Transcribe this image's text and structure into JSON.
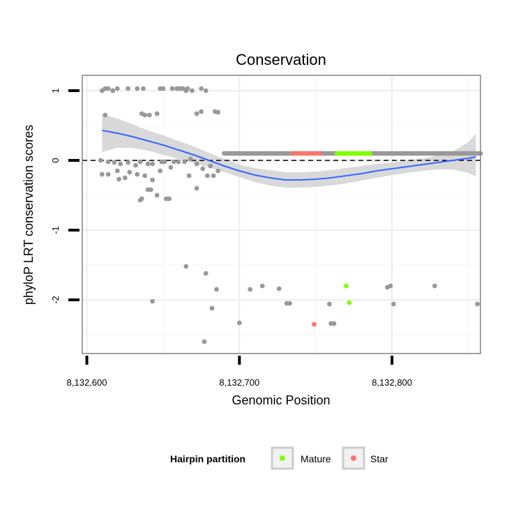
{
  "chart_data": {
    "type": "scatter",
    "title": "Conservation",
    "xlabel": "Genomic Position",
    "ylabel": "phyloP LRT conservation scores",
    "xlim": [
      8132597,
      8132858
    ],
    "ylim": [
      -2.77,
      1.22
    ],
    "x_ticks": [
      8132600,
      8132700,
      8132800
    ],
    "x_tick_labels": [
      "8,132,600",
      "8,132,700",
      "8,132,800"
    ],
    "y_ticks": [
      1,
      0,
      -1,
      -2
    ],
    "y_tick_labels": [
      "1",
      "0",
      "-1",
      "-2"
    ],
    "reference_line": {
      "y": 0,
      "style": "dashed"
    },
    "grid": true,
    "colors": {
      "other": "#999999",
      "Mature": "#7FFF00",
      "Star": "#F8766D",
      "smooth": "#3366FF",
      "ribbon": "#cccccc"
    },
    "legend": {
      "title": "Hairpin partition",
      "position": "bottom",
      "entries": [
        {
          "label": "Mature",
          "color": "#7FFF00"
        },
        {
          "label": "Star",
          "color": "#F8766D"
        }
      ]
    },
    "smooth_curve": {
      "x": [
        8132610,
        8132620,
        8132630,
        8132640,
        8132650,
        8132660,
        8132670,
        8132680,
        8132690,
        8132700,
        8132710,
        8132720,
        8132730,
        8132740,
        8132750,
        8132760,
        8132770,
        8132780,
        8132790,
        8132800,
        8132810,
        8132820,
        8132830,
        8132840,
        8132850,
        8132855
      ],
      "y": [
        0.43,
        0.39,
        0.34,
        0.28,
        0.22,
        0.15,
        0.08,
        0.0,
        -0.08,
        -0.15,
        -0.21,
        -0.25,
        -0.28,
        -0.28,
        -0.27,
        -0.25,
        -0.22,
        -0.19,
        -0.15,
        -0.12,
        -0.09,
        -0.06,
        -0.03,
        0.0,
        0.03,
        0.05
      ],
      "lower": [
        0.12,
        0.18,
        0.18,
        0.14,
        0.08,
        0.02,
        -0.04,
        -0.1,
        -0.17,
        -0.24,
        -0.31,
        -0.36,
        -0.39,
        -0.39,
        -0.38,
        -0.36,
        -0.33,
        -0.29,
        -0.25,
        -0.21,
        -0.18,
        -0.15,
        -0.13,
        -0.13,
        -0.18,
        -0.23
      ],
      "upper": [
        0.66,
        0.6,
        0.52,
        0.43,
        0.36,
        0.28,
        0.2,
        0.11,
        0.02,
        -0.06,
        -0.11,
        -0.14,
        -0.17,
        -0.17,
        -0.16,
        -0.14,
        -0.11,
        -0.08,
        -0.05,
        -0.03,
        0.0,
        0.03,
        0.07,
        0.13,
        0.26,
        0.38
      ]
    },
    "series": [
      {
        "name": "Other",
        "points": [
          [
            8132610,
            1.0
          ],
          [
            8132612,
            1.03
          ],
          [
            8132614,
            1.03
          ],
          [
            8132617,
            1.0
          ],
          [
            8132620,
            1.03
          ],
          [
            8132627,
            1.03
          ],
          [
            8132633,
            1.03
          ],
          [
            8132637,
            1.03
          ],
          [
            8132648,
            1.03
          ],
          [
            8132650,
            1.03
          ],
          [
            8132656,
            1.03
          ],
          [
            8132659,
            1.03
          ],
          [
            8132661,
            1.03
          ],
          [
            8132663,
            1.03
          ],
          [
            8132666,
            1.03
          ],
          [
            8132669,
            1.0
          ],
          [
            8132675,
            1.03
          ],
          [
            8132678,
            1.0
          ],
          [
            8132617,
            1.0
          ],
          [
            8132665,
            1.0
          ],
          [
            8132612,
            0.65
          ],
          [
            8132636,
            0.67
          ],
          [
            8132638,
            0.65
          ],
          [
            8132641,
            0.65
          ],
          [
            8132646,
            0.67
          ],
          [
            8132672,
            0.67
          ],
          [
            8132675,
            0.7
          ],
          [
            8132684,
            0.7
          ],
          [
            8132686,
            0.69
          ],
          [
            8132609,
            0.0
          ],
          [
            8132614,
            -0.02
          ],
          [
            8132618,
            -0.03
          ],
          [
            8132622,
            -0.05
          ],
          [
            8132627,
            -0.03
          ],
          [
            8132632,
            -0.07
          ],
          [
            8132635,
            -0.02
          ],
          [
            8132640,
            -0.05
          ],
          [
            8132643,
            -0.05
          ],
          [
            8132649,
            -0.02
          ],
          [
            8132651,
            -0.02
          ],
          [
            8132657,
            -0.02
          ],
          [
            8132660,
            -0.02
          ],
          [
            8132664,
            -0.02
          ],
          [
            8132668,
            0.02
          ],
          [
            8132672,
            -0.05
          ],
          [
            8132676,
            -0.12
          ],
          [
            8132681,
            -0.08
          ],
          [
            8132610,
            -0.2
          ],
          [
            8132614,
            -0.2
          ],
          [
            8132620,
            -0.15
          ],
          [
            8132625,
            -0.25
          ],
          [
            8132628,
            -0.17
          ],
          [
            8132633,
            -0.2
          ],
          [
            8132638,
            -0.22
          ],
          [
            8132648,
            -0.15
          ],
          [
            8132655,
            -0.1
          ],
          [
            8132667,
            -0.22
          ],
          [
            8132679,
            -0.22
          ],
          [
            8132683,
            -0.22
          ],
          [
            8132686,
            -0.15
          ],
          [
            8132621,
            -0.27
          ],
          [
            8132643,
            -0.28
          ],
          [
            8132640,
            -0.42
          ],
          [
            8132642,
            -0.42
          ],
          [
            8132646,
            -0.5
          ],
          [
            8132672,
            -0.4
          ],
          [
            8132652,
            -0.55
          ],
          [
            8132654,
            -0.55
          ],
          [
            8132635,
            -0.57
          ],
          [
            8132636,
            -0.55
          ],
          [
            8132643,
            -2.02
          ],
          [
            8132665,
            -1.52
          ],
          [
            8132678,
            -1.62
          ],
          [
            8132685,
            -1.85
          ],
          [
            8132682,
            -2.12
          ],
          [
            8132677,
            -2.6
          ],
          [
            8132700,
            -2.33
          ],
          [
            8132707,
            -1.85
          ],
          [
            8132715,
            -1.8
          ],
          [
            8132726,
            -1.84
          ],
          [
            8132731,
            -2.05
          ],
          [
            8132733,
            -2.05
          ],
          [
            8132759,
            -2.06
          ],
          [
            8132760,
            -2.34
          ],
          [
            8132762,
            -2.34
          ],
          [
            8132797,
            -1.82
          ],
          [
            8132799,
            -1.8
          ],
          [
            8132801,
            -2.06
          ],
          [
            8132828,
            -1.8
          ],
          [
            8132856,
            -2.06
          ]
        ]
      },
      {
        "name": "Mature",
        "points": [
          [
            8132770,
            -1.8
          ],
          [
            8132772,
            -2.04
          ]
        ]
      },
      {
        "name": "Star",
        "points": [
          [
            8132749,
            -2.35
          ]
        ]
      }
    ],
    "band_points": {
      "y": 0.1,
      "other_ranges": [
        [
          8132690,
          8132735
        ],
        [
          8132754,
          8132764
        ],
        [
          8132786,
          8132859
        ]
      ],
      "star_range": [
        8132735,
        8132754
      ],
      "mature_range": [
        8132764,
        8132786
      ],
      "step": 1.2
    }
  },
  "legend_ui": {
    "title": "Hairpin partition",
    "mature_label": "Mature",
    "star_label": "Star"
  }
}
